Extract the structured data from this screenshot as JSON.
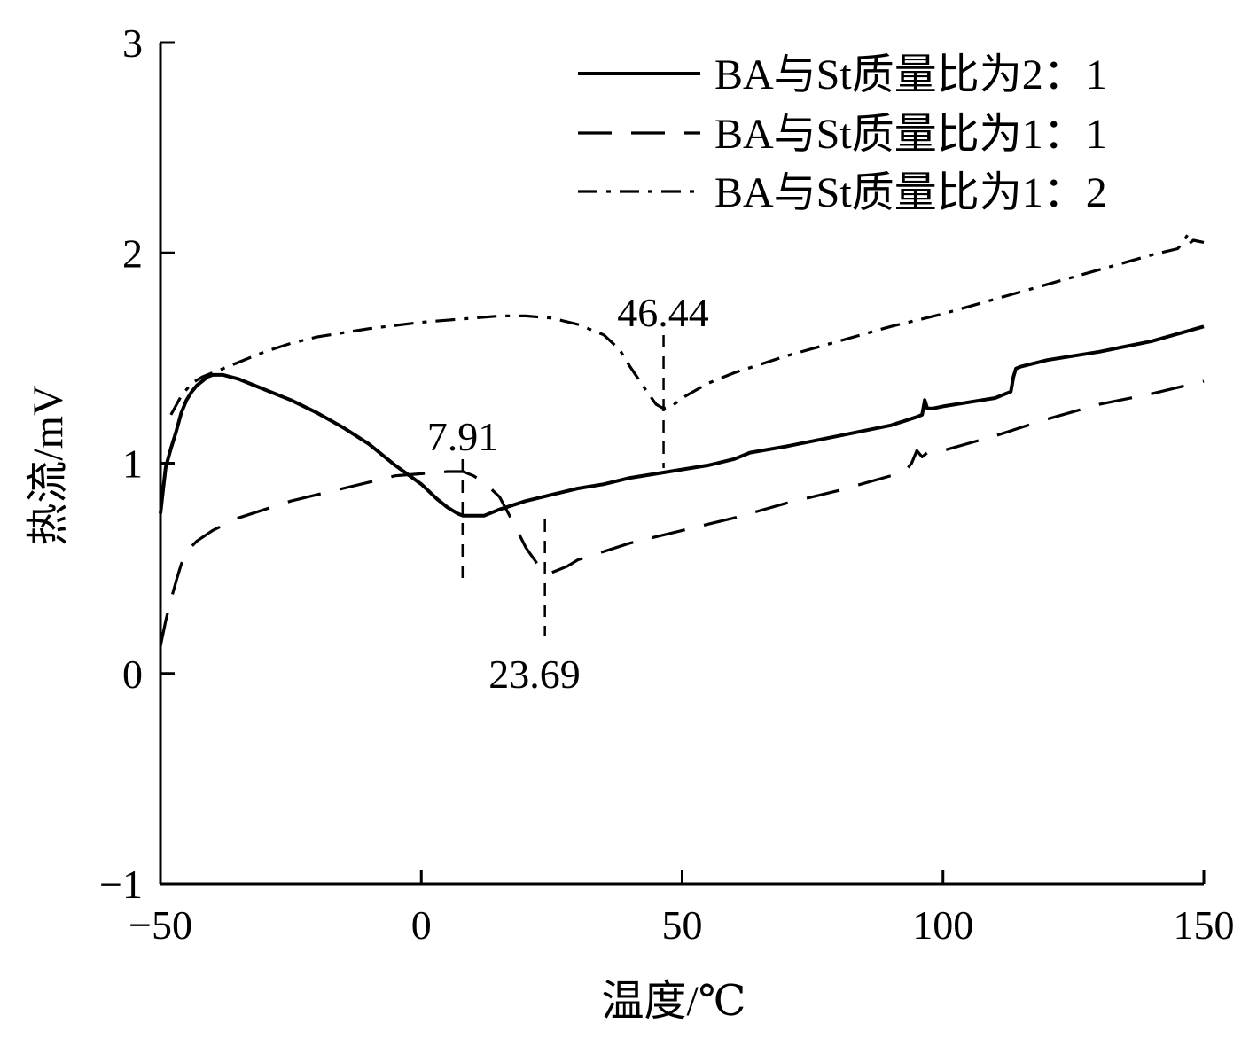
{
  "chart_data": {
    "type": "line",
    "xlabel": "温度/℃",
    "ylabel": "热流/mV",
    "xlim": [
      -50,
      150
    ],
    "ylim": [
      -1,
      3
    ],
    "xticks": [
      -50,
      0,
      50,
      100,
      150
    ],
    "xtick_labels": [
      "−50",
      "0",
      "50",
      "100",
      "150"
    ],
    "yticks": [
      -1,
      0,
      1,
      2,
      3
    ],
    "ytick_labels": [
      "−1",
      "0",
      "1",
      "2",
      "3"
    ],
    "grid": false,
    "legend_position": "top-right",
    "series": [
      {
        "name": "BA与St质量比为2：1",
        "style": "solid",
        "color": "#000000",
        "x": [
          -50,
          -49.5,
          -49,
          -48,
          -47,
          -46,
          -45,
          -44,
          -43,
          -42,
          -41,
          -40,
          -38,
          -35,
          -30,
          -25,
          -20,
          -15,
          -10,
          -5,
          0,
          3,
          5,
          7,
          8,
          10,
          12,
          15,
          20,
          25,
          30,
          35,
          40,
          45,
          50,
          55,
          60,
          63,
          70,
          80,
          90,
          95,
          96,
          96.5,
          97,
          98,
          100,
          105,
          110,
          113,
          113.5,
          114,
          115,
          120,
          130,
          140,
          150
        ],
        "y": [
          0.76,
          0.87,
          0.98,
          1.07,
          1.15,
          1.24,
          1.3,
          1.34,
          1.37,
          1.39,
          1.41,
          1.42,
          1.42,
          1.4,
          1.35,
          1.3,
          1.24,
          1.17,
          1.09,
          0.99,
          0.9,
          0.83,
          0.79,
          0.76,
          0.75,
          0.75,
          0.75,
          0.78,
          0.82,
          0.85,
          0.88,
          0.9,
          0.93,
          0.95,
          0.97,
          0.99,
          1.02,
          1.05,
          1.08,
          1.13,
          1.18,
          1.22,
          1.23,
          1.3,
          1.26,
          1.26,
          1.27,
          1.29,
          1.31,
          1.34,
          1.41,
          1.45,
          1.46,
          1.49,
          1.53,
          1.58,
          1.65
        ]
      },
      {
        "name": "BA与St质量比为1：1",
        "style": "dashed",
        "color": "#000000",
        "x": [
          -50,
          -49,
          -48,
          -47,
          -46,
          -45,
          -43,
          -40,
          -35,
          -30,
          -25,
          -20,
          -15,
          -10,
          -5,
          0,
          5,
          8,
          10,
          12,
          15,
          18,
          20,
          22,
          23.69,
          25,
          28,
          30,
          35,
          40,
          50,
          60,
          70,
          80,
          90,
          93,
          94,
          95,
          96,
          97,
          100,
          110,
          120,
          130,
          140,
          150
        ],
        "y": [
          0.13,
          0.25,
          0.35,
          0.44,
          0.52,
          0.58,
          0.63,
          0.68,
          0.74,
          0.78,
          0.82,
          0.85,
          0.88,
          0.91,
          0.94,
          0.95,
          0.96,
          0.96,
          0.94,
          0.91,
          0.84,
          0.7,
          0.6,
          0.53,
          0.48,
          0.48,
          0.51,
          0.54,
          0.58,
          0.62,
          0.68,
          0.74,
          0.81,
          0.87,
          0.94,
          0.97,
          1.0,
          1.06,
          1.03,
          1.05,
          1.06,
          1.13,
          1.21,
          1.28,
          1.33,
          1.39
        ]
      },
      {
        "name": "BA与St质量比为1：2",
        "style": "dashdot",
        "color": "#000000",
        "x": [
          -48,
          -46,
          -44,
          -42,
          -40,
          -35,
          -30,
          -25,
          -20,
          -10,
          0,
          10,
          15,
          20,
          25,
          30,
          35,
          38,
          40,
          43,
          45,
          46.44,
          48,
          50,
          55,
          60,
          70,
          80,
          90,
          100,
          110,
          120,
          130,
          140,
          145,
          146,
          147,
          147.5,
          148,
          150
        ],
        "y": [
          1.23,
          1.32,
          1.38,
          1.41,
          1.43,
          1.48,
          1.53,
          1.57,
          1.6,
          1.64,
          1.67,
          1.69,
          1.7,
          1.7,
          1.69,
          1.66,
          1.61,
          1.54,
          1.46,
          1.35,
          1.28,
          1.26,
          1.27,
          1.31,
          1.38,
          1.43,
          1.51,
          1.58,
          1.65,
          1.71,
          1.78,
          1.85,
          1.92,
          1.99,
          2.02,
          2.05,
          2.09,
          2.05,
          2.06,
          2.05
        ]
      }
    ],
    "annotations": [
      {
        "text": "7.91",
        "x": 7.91
      },
      {
        "text": "23.69",
        "x": 23.69
      },
      {
        "text": "46.44",
        "x": 46.44
      }
    ]
  }
}
